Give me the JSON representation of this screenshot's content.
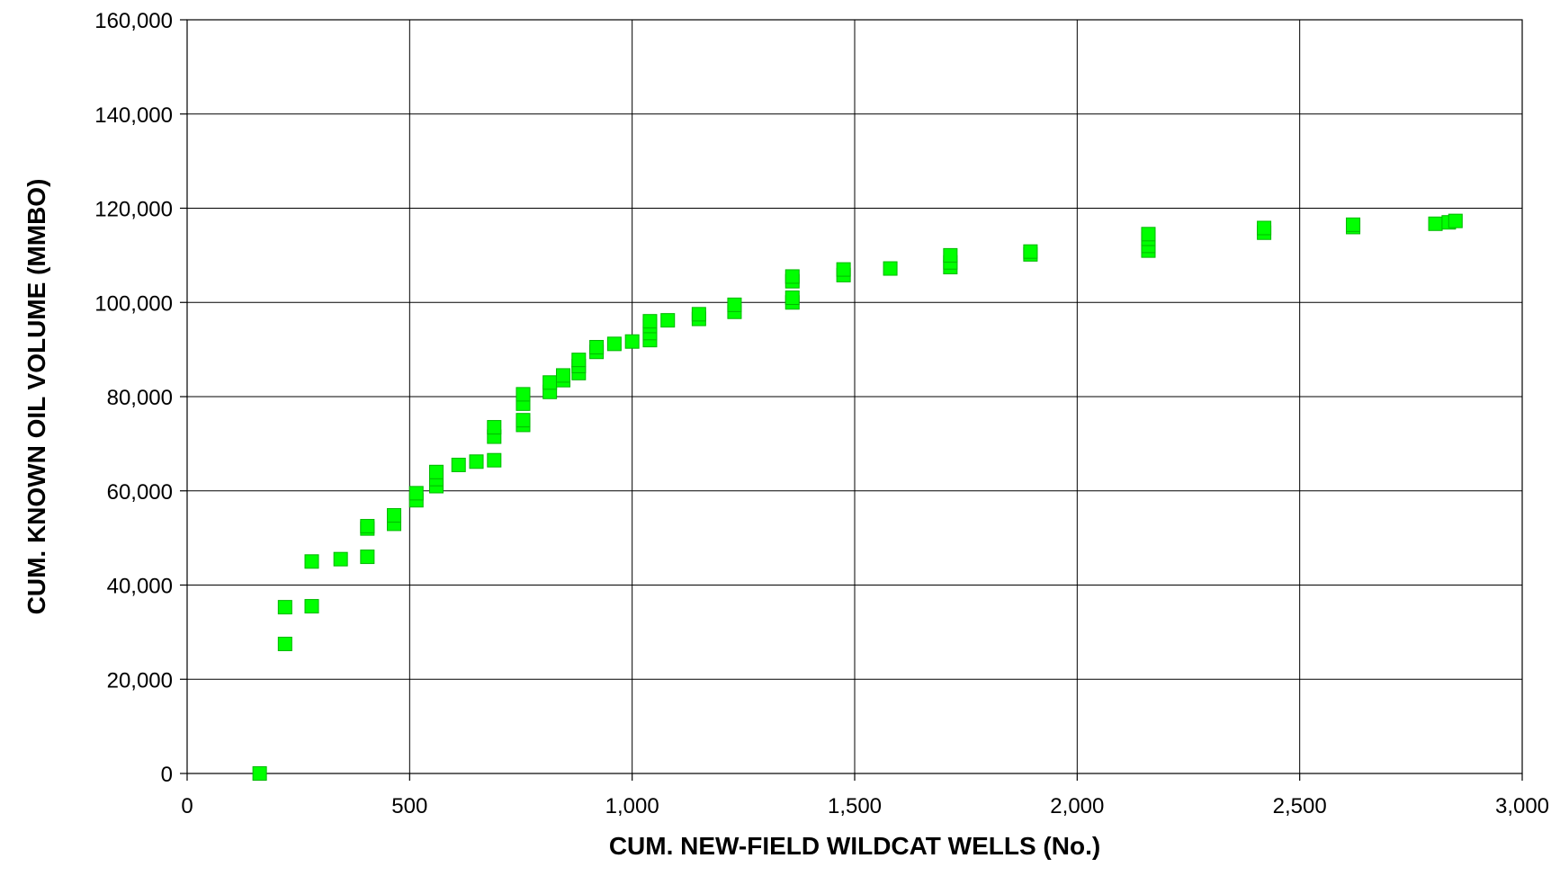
{
  "chart_data": {
    "type": "scatter",
    "title": "",
    "xlabel": "CUM. NEW-FIELD WILDCAT WELLS (No.)",
    "ylabel": "CUM. KNOWN OIL VOLUME (MMBO)",
    "xlim": [
      0,
      3000
    ],
    "ylim": [
      0,
      160000
    ],
    "x_ticks": [
      0,
      500,
      1000,
      1500,
      2000,
      2500,
      3000
    ],
    "y_ticks": [
      0,
      20000,
      40000,
      60000,
      80000,
      100000,
      120000,
      140000,
      160000
    ],
    "x_tick_labels": [
      "0",
      "500",
      "1,000",
      "1,500",
      "2,000",
      "2,500",
      "3,000"
    ],
    "y_tick_labels": [
      "0",
      "20,000",
      "40,000",
      "60,000",
      "80,000",
      "100,000",
      "120,000",
      "140,000",
      "160,000"
    ],
    "grid": true,
    "marker_color": "#00ff00",
    "points": [
      [
        163,
        0
      ],
      [
        220,
        27500
      ],
      [
        220,
        35300
      ],
      [
        280,
        35500
      ],
      [
        280,
        45000
      ],
      [
        345,
        45500
      ],
      [
        405,
        46000
      ],
      [
        405,
        52000
      ],
      [
        405,
        52500
      ],
      [
        465,
        53000
      ],
      [
        465,
        54800
      ],
      [
        515,
        58000
      ],
      [
        515,
        59500
      ],
      [
        560,
        61000
      ],
      [
        560,
        62500
      ],
      [
        560,
        64000
      ],
      [
        610,
        65500
      ],
      [
        650,
        66200
      ],
      [
        690,
        66500
      ],
      [
        690,
        71500
      ],
      [
        690,
        73500
      ],
      [
        755,
        74000
      ],
      [
        755,
        75000
      ],
      [
        755,
        78500
      ],
      [
        755,
        80500
      ],
      [
        815,
        81000
      ],
      [
        815,
        83000
      ],
      [
        845,
        83500
      ],
      [
        845,
        84500
      ],
      [
        880,
        85000
      ],
      [
        880,
        86500
      ],
      [
        880,
        87800
      ],
      [
        920,
        89500
      ],
      [
        920,
        90500
      ],
      [
        960,
        91200
      ],
      [
        1000,
        91700
      ],
      [
        1040,
        92000
      ],
      [
        1040,
        93500
      ],
      [
        1040,
        95000
      ],
      [
        1040,
        96000
      ],
      [
        1080,
        96200
      ],
      [
        1150,
        96500
      ],
      [
        1150,
        97500
      ],
      [
        1230,
        98000
      ],
      [
        1230,
        99500
      ],
      [
        1360,
        100000
      ],
      [
        1360,
        101000
      ],
      [
        1360,
        104500
      ],
      [
        1360,
        105500
      ],
      [
        1475,
        105800
      ],
      [
        1475,
        107000
      ],
      [
        1580,
        107200
      ],
      [
        1715,
        107500
      ],
      [
        1715,
        108500
      ],
      [
        1715,
        110000
      ],
      [
        1895,
        110200
      ],
      [
        1895,
        110800
      ],
      [
        2160,
        111000
      ],
      [
        2160,
        112000
      ],
      [
        2160,
        113500
      ],
      [
        2160,
        114500
      ],
      [
        2420,
        114800
      ],
      [
        2420,
        115800
      ],
      [
        2620,
        116000
      ],
      [
        2620,
        116500
      ],
      [
        2805,
        116700
      ],
      [
        2835,
        117000
      ],
      [
        2850,
        117300
      ]
    ]
  }
}
